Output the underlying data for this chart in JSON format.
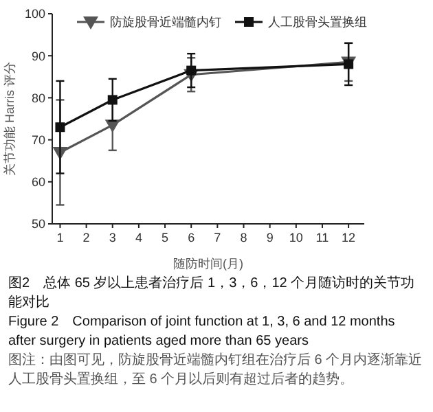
{
  "chart_data": {
    "type": "line",
    "xlabel": "随防时间(月)",
    "ylabel": "关节功能 Harris 评分",
    "x": [
      1,
      3,
      6,
      12
    ],
    "xlim": [
      0.7,
      12.6
    ],
    "xticks": [
      1,
      2,
      3,
      4,
      5,
      6,
      7,
      8,
      9,
      10,
      11,
      12
    ],
    "ylim": [
      50,
      100
    ],
    "yticks": [
      50,
      60,
      70,
      80,
      90,
      100
    ],
    "legend": "top",
    "grid": false,
    "series": [
      {
        "name": "防旋股骨近端髓内钉",
        "color": "#555555",
        "marker": "triangle",
        "values": [
          67,
          73.5,
          85.5,
          88.5
        ],
        "errors": [
          12.5,
          6,
          4,
          4.5
        ]
      },
      {
        "name": "人工股骨头置换组",
        "color": "#111111",
        "marker": "square",
        "values": [
          73,
          79.5,
          86.5,
          88
        ],
        "errors": [
          11,
          5,
          4,
          5
        ]
      }
    ],
    "annotations": [
      "图2　总体 65 岁以上患者治疗后 1，3，6，12 个月随访时的关节功能对比",
      "Figure 2　Comparison of joint function at 1, 3, 6 and 12 months after surgery in patients aged more than 65 years",
      "图注：由图可见，防旋股骨近端髓内钉组在治疗后 6 个月内逐渐靠近人工股骨头置换组，至 6 个月以后则有超过后者的趋势。"
    ]
  }
}
